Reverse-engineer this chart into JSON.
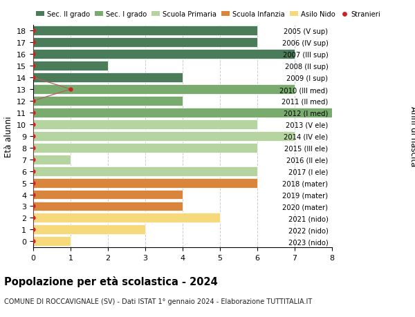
{
  "ages": [
    18,
    17,
    16,
    15,
    14,
    13,
    12,
    11,
    10,
    9,
    8,
    7,
    6,
    5,
    4,
    3,
    2,
    1,
    0
  ],
  "years": [
    "2005 (V sup)",
    "2006 (IV sup)",
    "2007 (III sup)",
    "2008 (II sup)",
    "2009 (I sup)",
    "2010 (III med)",
    "2011 (II med)",
    "2012 (I med)",
    "2013 (V ele)",
    "2014 (IV ele)",
    "2015 (III ele)",
    "2016 (II ele)",
    "2017 (I ele)",
    "2018 (mater)",
    "2019 (mater)",
    "2020 (mater)",
    "2021 (nido)",
    "2022 (nido)",
    "2023 (nido)"
  ],
  "bar_values": [
    6,
    6,
    7,
    2,
    4,
    7,
    4,
    8,
    6,
    7,
    6,
    1,
    6,
    6,
    4,
    4,
    5,
    3,
    1
  ],
  "bar_colors": [
    "#4a7c59",
    "#4a7c59",
    "#4a7c59",
    "#4a7c59",
    "#4a7c59",
    "#7aab6e",
    "#7aab6e",
    "#7aab6e",
    "#b5d4a0",
    "#b5d4a0",
    "#b5d4a0",
    "#b5d4a0",
    "#b5d4a0",
    "#d9853b",
    "#d9853b",
    "#d9853b",
    "#f5d97a",
    "#f5d97a",
    "#f5d97a"
  ],
  "stranieri_color": "#cc2222",
  "stranieri_line_color": "#b06060",
  "stranieri_x": [
    0,
    0,
    0,
    0,
    0,
    1,
    0,
    0,
    0,
    0,
    0,
    0,
    0,
    0,
    0,
    0,
    0,
    0,
    0
  ],
  "legend_labels": [
    "Sec. II grado",
    "Sec. I grado",
    "Scuola Primaria",
    "Scuola Infanzia",
    "Asilo Nido",
    "Stranieri"
  ],
  "legend_colors": [
    "#4a7c59",
    "#7aab6e",
    "#b5d4a0",
    "#d9853b",
    "#f5d97a",
    "#cc2222"
  ],
  "ylabel_left": "Età alunni",
  "ylabel_right": "Anni di nascita",
  "title": "Popolazione per età scolastica - 2024",
  "subtitle": "COMUNE DI ROCCAVIGNALE (SV) - Dati ISTAT 1° gennaio 2024 - Elaborazione TUTTITALIA.IT",
  "xlim": [
    0,
    8
  ],
  "xticks": [
    0,
    1,
    2,
    3,
    4,
    5,
    6,
    7,
    8
  ],
  "background_color": "#ffffff",
  "grid_color": "#cccccc"
}
